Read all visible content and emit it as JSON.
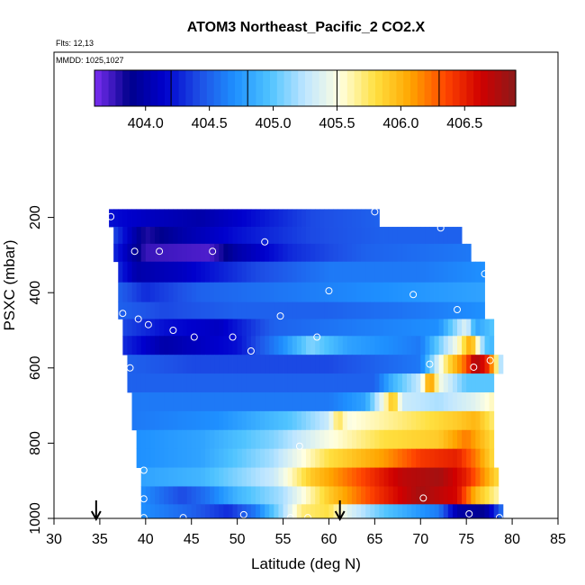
{
  "chart_data": {
    "type": "heatmap",
    "title": "ATOM3 Northeast_Pacific_2 CO2.X",
    "annotations": [
      "Flts: 12,13",
      "MMDD: 1025,1027"
    ],
    "xlabel": "Latitude (deg N)",
    "ylabel": "PSXC (mbar)",
    "xlim": [
      30,
      85
    ],
    "ylim": [
      1000,
      0
    ],
    "x_ticks": [
      30,
      35,
      40,
      45,
      50,
      55,
      60,
      65,
      70,
      75,
      80,
      85
    ],
    "y_ticks": [
      200,
      400,
      600,
      800,
      1000
    ],
    "colorbar": {
      "range": [
        403.6,
        406.9
      ],
      "ticks": [
        404.0,
        404.5,
        405.0,
        405.5,
        406.0,
        406.5
      ],
      "colors": [
        "#7b2ff2",
        "#00008b",
        "#0000cd",
        "#1e50e6",
        "#1e90ff",
        "#4fc3ff",
        "#bfe6ff",
        "#ffffe0",
        "#ffe040",
        "#ffa500",
        "#ff4500",
        "#d00000",
        "#8b1a1a"
      ]
    },
    "markers": {
      "arrows_latitude": [
        34.6,
        61.2
      ]
    },
    "bands": [
      {
        "p": 200,
        "lat0": 36.0,
        "lat1": 65.5,
        "stops": [
          [
            36,
            404.2
          ],
          [
            40,
            404.1
          ],
          [
            46,
            404.0
          ],
          [
            52,
            404.2
          ],
          [
            58,
            404.4
          ],
          [
            65.5,
            404.5
          ]
        ]
      },
      {
        "p": 250,
        "lat0": 36.5,
        "lat1": 74.5,
        "stops": [
          [
            36.5,
            404.4
          ],
          [
            40,
            403.8
          ],
          [
            44,
            404.0
          ],
          [
            50,
            404.2
          ],
          [
            58,
            404.4
          ],
          [
            66,
            404.5
          ],
          [
            74.5,
            404.5
          ]
        ]
      },
      {
        "p": 290,
        "lat0": 36.5,
        "lat1": 75.5,
        "stops": [
          [
            36.5,
            404.3
          ],
          [
            40,
            403.75
          ],
          [
            47,
            403.7
          ],
          [
            50,
            404.0
          ],
          [
            56,
            404.3
          ],
          [
            64,
            404.5
          ],
          [
            75.5,
            404.6
          ]
        ]
      },
      {
        "p": 345,
        "lat0": 37.0,
        "lat1": 77.0,
        "stops": [
          [
            37,
            404.3
          ],
          [
            39,
            404.0
          ],
          [
            44,
            404.1
          ],
          [
            52,
            404.4
          ],
          [
            60,
            404.6
          ],
          [
            70,
            404.6
          ],
          [
            77,
            404.7
          ]
        ]
      },
      {
        "p": 400,
        "lat0": 37.0,
        "lat1": 77.0,
        "stops": [
          [
            37,
            404.5
          ],
          [
            40,
            404.3
          ],
          [
            46,
            404.5
          ],
          [
            56,
            404.6
          ],
          [
            66,
            404.7
          ],
          [
            77,
            404.8
          ]
        ]
      },
      {
        "p": 450,
        "lat0": 37.0,
        "lat1": 77.0,
        "stops": [
          [
            37,
            404.5
          ],
          [
            42,
            404.4
          ],
          [
            50,
            404.5
          ],
          [
            60,
            404.5
          ],
          [
            70,
            404.6
          ],
          [
            77,
            404.7
          ]
        ]
      },
      {
        "p": 490,
        "lat0": 37.5,
        "lat1": 78.0,
        "stops": [
          [
            37.5,
            404.4
          ],
          [
            42,
            404.2
          ],
          [
            48,
            404.1
          ],
          [
            54,
            404.5
          ],
          [
            62,
            404.6
          ],
          [
            72,
            404.7
          ],
          [
            75,
            405.4
          ],
          [
            76,
            404.8
          ],
          [
            78,
            405.0
          ]
        ]
      },
      {
        "p": 540,
        "lat0": 37.5,
        "lat1": 78.0,
        "stops": [
          [
            37.5,
            404.3
          ],
          [
            42,
            404.0
          ],
          [
            46,
            404.1
          ],
          [
            50,
            404.2
          ],
          [
            55,
            404.7
          ],
          [
            58,
            405.1
          ],
          [
            62,
            404.8
          ],
          [
            70,
            404.6
          ],
          [
            74,
            405.5
          ],
          [
            75.5,
            406.1
          ],
          [
            77,
            405.0
          ],
          [
            78,
            404.9
          ]
        ]
      },
      {
        "p": 590,
        "lat0": 38.0,
        "lat1": 79.0,
        "stops": [
          [
            38,
            404.5
          ],
          [
            45,
            404.4
          ],
          [
            52,
            404.4
          ],
          [
            60,
            404.4
          ],
          [
            70,
            404.6
          ],
          [
            73,
            405.8
          ],
          [
            75,
            406.3
          ],
          [
            76,
            406.8
          ],
          [
            77.5,
            406.4
          ],
          [
            79,
            405.0
          ]
        ]
      },
      {
        "p": 640,
        "lat0": 38.0,
        "lat1": 78.0,
        "stops": [
          [
            38,
            404.5
          ],
          [
            50,
            404.5
          ],
          [
            60,
            404.5
          ],
          [
            65,
            404.5
          ],
          [
            67,
            404.9
          ],
          [
            70,
            405.3
          ],
          [
            71,
            406.2
          ],
          [
            72,
            405.5
          ],
          [
            75,
            405.0
          ],
          [
            78,
            405.0
          ]
        ]
      },
      {
        "p": 690,
        "lat0": 38.5,
        "lat1": 78.0,
        "stops": [
          [
            38.5,
            404.6
          ],
          [
            50,
            404.6
          ],
          [
            60,
            404.6
          ],
          [
            64,
            404.8
          ],
          [
            66,
            405.5
          ],
          [
            67,
            406.0
          ],
          [
            68,
            405.3
          ],
          [
            72,
            405.2
          ],
          [
            76,
            405.4
          ],
          [
            78,
            405.6
          ]
        ]
      },
      {
        "p": 740,
        "lat0": 38.5,
        "lat1": 78.0,
        "stops": [
          [
            38.5,
            404.6
          ],
          [
            48,
            404.7
          ],
          [
            56,
            405.0
          ],
          [
            60,
            405.3
          ],
          [
            61,
            405.8
          ],
          [
            62,
            405.5
          ],
          [
            68,
            405.7
          ],
          [
            74,
            405.9
          ],
          [
            76,
            406.0
          ],
          [
            78,
            405.7
          ]
        ]
      },
      {
        "p": 790,
        "lat0": 39.0,
        "lat1": 78.0,
        "stops": [
          [
            39,
            404.7
          ],
          [
            46,
            404.8
          ],
          [
            54,
            405.1
          ],
          [
            60,
            405.5
          ],
          [
            66,
            405.8
          ],
          [
            72,
            405.9
          ],
          [
            75,
            406.2
          ],
          [
            78,
            405.8
          ]
        ]
      },
      {
        "p": 840,
        "lat0": 39.0,
        "lat1": 78.0,
        "stops": [
          [
            39,
            404.7
          ],
          [
            46,
            404.8
          ],
          [
            54,
            405.2
          ],
          [
            60,
            405.8
          ],
          [
            66,
            406.1
          ],
          [
            70,
            406.4
          ],
          [
            74,
            406.5
          ],
          [
            76,
            406.2
          ],
          [
            78,
            405.8
          ]
        ]
      },
      {
        "p": 890,
        "lat0": 39.5,
        "lat1": 78.5,
        "stops": [
          [
            39.5,
            404.8
          ],
          [
            46,
            404.9
          ],
          [
            54,
            405.3
          ],
          [
            58,
            405.9
          ],
          [
            63,
            406.3
          ],
          [
            68,
            406.7
          ],
          [
            72,
            406.8
          ],
          [
            75,
            406.5
          ],
          [
            78.5,
            405.8
          ]
        ]
      },
      {
        "p": 940,
        "lat0": 39.5,
        "lat1": 78.5,
        "stops": [
          [
            39.5,
            404.7
          ],
          [
            44,
            404.4
          ],
          [
            47,
            404.6
          ],
          [
            50,
            404.9
          ],
          [
            55,
            405.2
          ],
          [
            60,
            405.9
          ],
          [
            65,
            406.4
          ],
          [
            70,
            406.8
          ],
          [
            74,
            406.6
          ],
          [
            76,
            406.0
          ],
          [
            78.5,
            405.6
          ]
        ]
      },
      {
        "p": 985,
        "lat0": 39.5,
        "lat1": 79.0,
        "stops": [
          [
            39.5,
            404.7
          ],
          [
            45,
            404.5
          ],
          [
            49,
            404.3
          ],
          [
            52,
            404.6
          ],
          [
            55,
            405.2
          ],
          [
            57,
            405.7
          ],
          [
            60,
            405.8
          ],
          [
            62,
            405.4
          ],
          [
            66,
            405.0
          ],
          [
            72,
            404.6
          ],
          [
            74,
            404.0
          ],
          [
            77,
            403.9
          ],
          [
            79,
            404.6
          ]
        ]
      }
    ],
    "sample_points": [
      [
        36.2,
        198
      ],
      [
        65.0,
        185
      ],
      [
        72.2,
        228
      ],
      [
        53.0,
        265
      ],
      [
        38.8,
        290
      ],
      [
        41.5,
        290
      ],
      [
        47.3,
        290
      ],
      [
        77.0,
        350
      ],
      [
        60.0,
        395
      ],
      [
        69.2,
        405
      ],
      [
        74.0,
        445
      ],
      [
        37.5,
        455
      ],
      [
        39.2,
        470
      ],
      [
        40.3,
        485
      ],
      [
        43.0,
        500
      ],
      [
        54.7,
        462
      ],
      [
        45.3,
        518
      ],
      [
        49.5,
        518
      ],
      [
        58.7,
        518
      ],
      [
        51.5,
        555
      ],
      [
        38.3,
        600
      ],
      [
        71.0,
        590
      ],
      [
        75.8,
        598
      ],
      [
        77.6,
        580
      ],
      [
        56.8,
        808
      ],
      [
        39.8,
        872
      ],
      [
        39.8,
        948
      ],
      [
        70.3,
        946
      ],
      [
        75.3,
        988
      ],
      [
        39.8,
        998
      ],
      [
        44.1,
        998
      ],
      [
        50.7,
        990
      ],
      [
        55.8,
        998
      ],
      [
        57.7,
        998
      ],
      [
        78.6,
        998
      ]
    ]
  }
}
